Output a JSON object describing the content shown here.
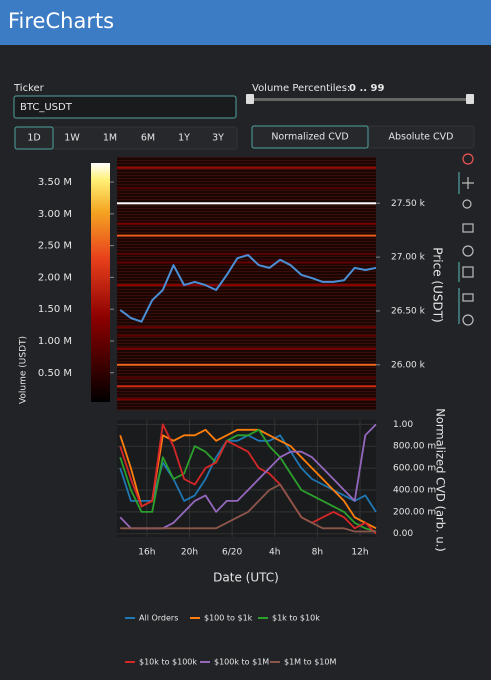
{
  "header": {
    "title": "FireCharts"
  },
  "controls": {
    "ticker_label": "Ticker",
    "ticker_value": "BTC_USDT",
    "percentiles_label": "Volume Percentiles:",
    "percentiles_range": "0 .. 99",
    "timeframes": [
      "1D",
      "1W",
      "1M",
      "6M",
      "1Y",
      "3Y"
    ],
    "cvd_modes": [
      "Normalized CVD",
      "Absolute CVD"
    ]
  },
  "chart_data": [
    {
      "type": "line",
      "x": [
        13.5,
        14.5,
        15.5,
        16.5,
        17.5,
        18.5,
        19.5,
        20.5,
        21.5,
        22.5,
        23.5,
        24.5,
        25.5,
        26.5,
        27.5,
        28.5,
        29.5,
        30.5,
        31.5,
        32.5,
        33.5,
        34.5,
        35.5,
        36.5,
        37.5
      ],
      "values": [
        26510,
        26435,
        26400,
        26600,
        26695,
        26925,
        26740,
        26770,
        26740,
        26695,
        26835,
        26990,
        27020,
        26925,
        26900,
        26975,
        26925,
        26835,
        26805,
        26770,
        26770,
        26785,
        26900,
        26880,
        26900
      ],
      "color": "#4a8fd6",
      "ylabel": "Price (USDT)",
      "ylim": [
        25580,
        27930
      ],
      "yticks": [
        {
          "value": 26000,
          "label": "26.00 k"
        },
        {
          "value": 26500,
          "label": "26.50 k"
        },
        {
          "value": 27000,
          "label": "27.00 k"
        },
        {
          "value": 27500,
          "label": "27.50 k"
        }
      ],
      "heatmap": {
        "y": [
          27830,
          27640,
          27500,
          27310,
          27200,
          27030,
          26950,
          26740,
          26350,
          26270,
          26150,
          26000,
          25880,
          25800,
          25680
        ],
        "values": [
          1500000,
          800000,
          3900000,
          1200000,
          2500000,
          900000,
          1000000,
          1400000,
          1000000,
          900000,
          1200000,
          2600000,
          800000,
          2000000,
          1200000
        ]
      },
      "colorbar": {
        "label": "Volume (USDT)",
        "lim": [
          40000,
          3800000
        ],
        "ticks": [
          {
            "value": 500000,
            "label": "0.50 M"
          },
          {
            "value": 1000000,
            "label": "1.00 M"
          },
          {
            "value": 1500000,
            "label": "1.50 M"
          },
          {
            "value": 2000000,
            "label": "2.00 M"
          },
          {
            "value": 2500000,
            "label": "2.50 M"
          },
          {
            "value": 3000000,
            "label": "3.00 M"
          },
          {
            "value": 3500000,
            "label": "3.50 M"
          }
        ]
      }
    },
    {
      "type": "line",
      "xlabel": "Date (UTC)",
      "ylabel": "Normalized CVD (arb. u.)",
      "x": [
        13.5,
        14.5,
        15.5,
        16.5,
        17.5,
        18.5,
        19.5,
        20.5,
        21.5,
        22.5,
        23.5,
        24.5,
        25.5,
        26.5,
        27.5,
        28.5,
        29.5,
        30.5,
        31.5,
        32.5,
        33.5,
        34.5,
        35.5,
        36.5,
        37.5
      ],
      "xlim": [
        13.2,
        37.5
      ],
      "xticks": [
        {
          "value": 16,
          "label": "16h"
        },
        {
          "value": 20,
          "label": "20h"
        },
        {
          "value": 24,
          "label": "6/20"
        },
        {
          "value": 28,
          "label": "4h"
        },
        {
          "value": 32,
          "label": "8h"
        },
        {
          "value": 36,
          "label": "12h"
        }
      ],
      "ylim": [
        -0.03,
        1.04
      ],
      "yticks": [
        {
          "value": 0,
          "label": "0.00"
        },
        {
          "value": 0.2,
          "label": "200.00 m"
        },
        {
          "value": 0.4,
          "label": "400.00 m"
        },
        {
          "value": 0.6,
          "label": "600.00 m"
        },
        {
          "value": 0.8,
          "label": "800.00 m"
        },
        {
          "value": 1,
          "label": "1.00"
        }
      ],
      "series": [
        {
          "name": "All Orders",
          "color": "#1f77b4",
          "values": [
            0.6,
            0.3,
            0.3,
            0.3,
            0.65,
            0.5,
            0.3,
            0.35,
            0.5,
            0.7,
            0.85,
            0.85,
            0.9,
            0.85,
            0.85,
            0.9,
            0.75,
            0.6,
            0.5,
            0.45,
            0.4,
            0.35,
            0.3,
            0.35,
            0.2
          ]
        },
        {
          "name": "$100 to $1k",
          "color": "#ff7f0e",
          "values": [
            0.9,
            0.6,
            0.25,
            0.3,
            0.9,
            0.85,
            0.9,
            0.9,
            0.95,
            0.85,
            0.9,
            0.95,
            0.95,
            0.95,
            0.9,
            0.85,
            0.8,
            0.7,
            0.6,
            0.5,
            0.4,
            0.3,
            0.15,
            0.1,
            0.05
          ]
        },
        {
          "name": "$1k to $10k",
          "color": "#2ca02c",
          "values": [
            0.7,
            0.4,
            0.2,
            0.2,
            0.7,
            0.5,
            0.55,
            0.8,
            0.75,
            0.65,
            0.85,
            0.9,
            0.9,
            0.95,
            0.8,
            0.7,
            0.55,
            0.4,
            0.35,
            0.3,
            0.25,
            0.2,
            0.1,
            0.05,
            0.02
          ]
        },
        {
          "name": "$10k to $100k",
          "color": "#d62728",
          "values": [
            0.8,
            0.5,
            0.25,
            0.3,
            1.0,
            0.8,
            0.5,
            0.45,
            0.6,
            0.65,
            0.85,
            0.8,
            0.75,
            0.6,
            0.55,
            0.45,
            0.3,
            0.15,
            0.1,
            0.15,
            0.2,
            0.15,
            0.05,
            0.1,
            0.0
          ]
        },
        {
          "name": "$100k to $1M",
          "color": "#9467bd",
          "values": [
            0.15,
            0.05,
            0.05,
            0.05,
            0.05,
            0.1,
            0.2,
            0.3,
            0.35,
            0.2,
            0.3,
            0.3,
            0.4,
            0.5,
            0.6,
            0.7,
            0.75,
            0.75,
            0.7,
            0.6,
            0.5,
            0.4,
            0.3,
            0.9,
            1.0
          ]
        },
        {
          "name": "$1M to $10M",
          "color": "#8c564b",
          "values": [
            0.05,
            0.05,
            0.05,
            0.05,
            0.05,
            0.05,
            0.05,
            0.05,
            0.05,
            0.05,
            0.1,
            0.15,
            0.2,
            0.3,
            0.4,
            0.45,
            0.3,
            0.15,
            0.1,
            0.05,
            0.05,
            0.05,
            0.02,
            0.02,
            0.02
          ]
        }
      ]
    }
  ]
}
